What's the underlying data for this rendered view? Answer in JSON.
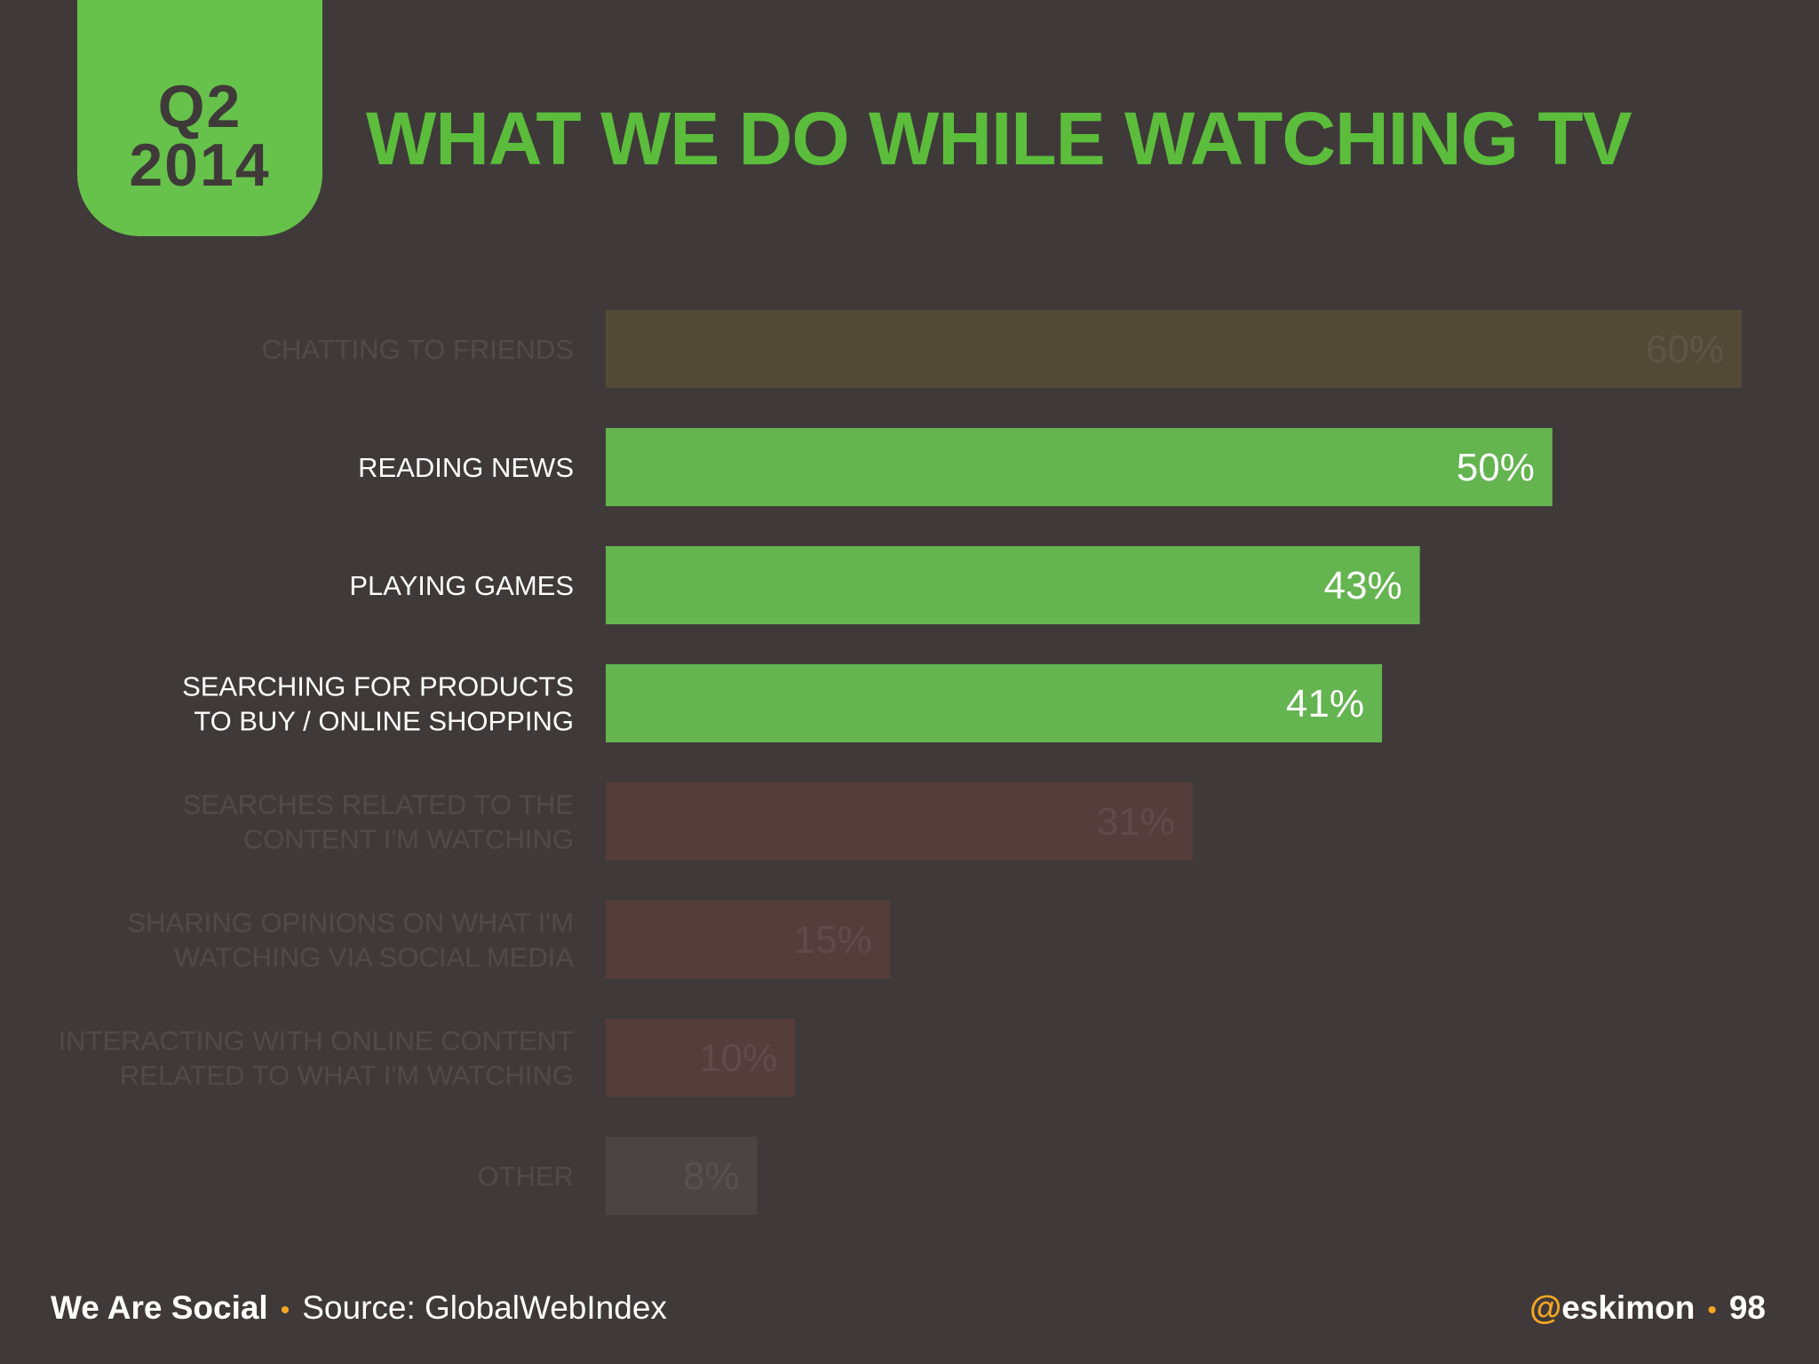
{
  "badge": {
    "quarter": "Q2",
    "year": "2014"
  },
  "colors": {
    "background": "#3f3a39",
    "accent_green": "#67c24b",
    "highlight_bar": "#64b450",
    "dim_chatting": "#524937",
    "dim_red": "#553d3c",
    "dim_other": "#4a4443",
    "footer_dot": "#f5a623"
  },
  "chart_data": {
    "type": "bar",
    "orientation": "horizontal",
    "title": "WHAT WE DO WHILE WATCHING TV",
    "xlim": [
      0,
      60
    ],
    "value_suffix": "%",
    "categories": [
      [
        "CHATTING TO FRIENDS"
      ],
      [
        "READING NEWS"
      ],
      [
        "PLAYING GAMES"
      ],
      [
        "SEARCHING FOR PRODUCTS",
        "TO BUY / ONLINE SHOPPING"
      ],
      [
        "SEARCHES RELATED TO THE",
        "CONTENT I'M WATCHING"
      ],
      [
        "SHARING OPINIONS ON WHAT I'M",
        "WATCHING VIA SOCIAL MEDIA"
      ],
      [
        "INTERACTING WITH ONLINE CONTENT",
        "RELATED TO WHAT I'M WATCHING"
      ],
      [
        "OTHER"
      ]
    ],
    "values": [
      60,
      50,
      43,
      41,
      31,
      15,
      10,
      8
    ],
    "highlighted": [
      false,
      true,
      true,
      true,
      false,
      false,
      false,
      false
    ],
    "bar_colors": [
      "#524937",
      "#64b450",
      "#64b450",
      "#64b450",
      "#553d3c",
      "#553d3c",
      "#553d3c",
      "#4a4443"
    ]
  },
  "footer": {
    "brand": "We Are Social",
    "separator": "•",
    "source": "Source: GlobalWebIndex",
    "handle_at": "@",
    "handle_name": "eskimon",
    "page_number": "98"
  }
}
